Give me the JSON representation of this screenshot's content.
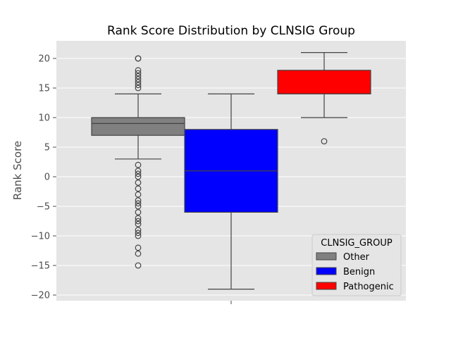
{
  "chart_data": {
    "type": "box",
    "title": "Rank Score Distribution by CLNSIG Group",
    "xlabel": "",
    "ylabel": "Rank Score",
    "ylim": [
      -21,
      23
    ],
    "yticks": [
      20,
      15,
      10,
      5,
      0,
      -5,
      -10,
      -15,
      -20
    ],
    "ytick_labels": [
      "20",
      "15",
      "10",
      "5",
      "0",
      "−5",
      "−10",
      "−15",
      "−20"
    ],
    "grid": true,
    "legend": {
      "title": "CLNSIG_GROUP",
      "placement": "lower-right"
    },
    "series": [
      {
        "name": "Other",
        "color": "#808080",
        "whisker_low": 3,
        "q1": 7,
        "median": 9,
        "q3": 10,
        "whisker_high": 14,
        "outliers": [
          15,
          15.5,
          16,
          16.5,
          17,
          17.5,
          18,
          20,
          20,
          2,
          1,
          0.5,
          0,
          -1,
          -2,
          -3,
          -4,
          -4.5,
          -5,
          -6,
          -7,
          -7.5,
          -8,
          -9,
          -9.5,
          -10,
          -12,
          -13,
          -15
        ]
      },
      {
        "name": "Benign",
        "color": "#0000ff",
        "whisker_low": -19,
        "q1": -6,
        "median": 1,
        "q3": 8,
        "whisker_high": 14,
        "outliers": []
      },
      {
        "name": "Pathogenic",
        "color": "#ff0000",
        "whisker_low": 10,
        "q1": 14,
        "median": 14,
        "q3": 18,
        "whisker_high": 21,
        "outliers": [
          6
        ]
      }
    ]
  }
}
